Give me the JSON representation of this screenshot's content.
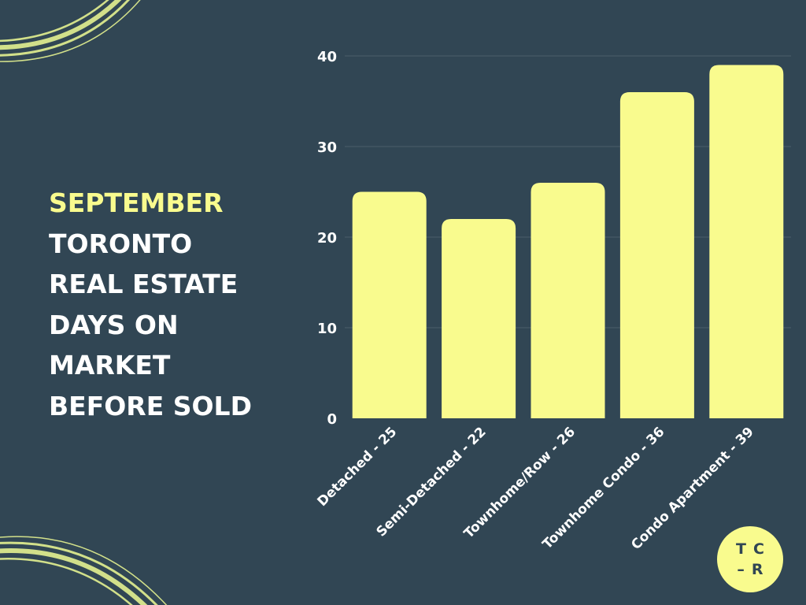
{
  "colors": {
    "background": "#314654",
    "accent": "#f9fb8e",
    "text": "#ffffff",
    "grid": "#4a5d6a"
  },
  "title": {
    "accent_line": "SEPTEMBER",
    "lines": [
      "TORONTO",
      "REAL ESTATE",
      "DAYS ON",
      "MARKET",
      "BEFORE SOLD"
    ]
  },
  "logo": {
    "line1": "TC",
    "line2": "–R"
  },
  "decorations": [
    "brush-swirl-top-left",
    "brush-swirl-bottom-left"
  ],
  "chart_data": {
    "type": "bar",
    "categories": [
      "Detached - 25",
      "Semi-Detached - 22",
      "Townhome/Row - 26",
      "Townhome Condo - 36",
      "Condo Apartment - 39"
    ],
    "values": [
      25,
      22,
      26,
      36,
      39
    ],
    "yticks": [
      0,
      10,
      20,
      30,
      40
    ],
    "ylim": [
      0,
      40
    ],
    "grid": true,
    "legend": "none",
    "bar_color": "#f9fb8e"
  }
}
